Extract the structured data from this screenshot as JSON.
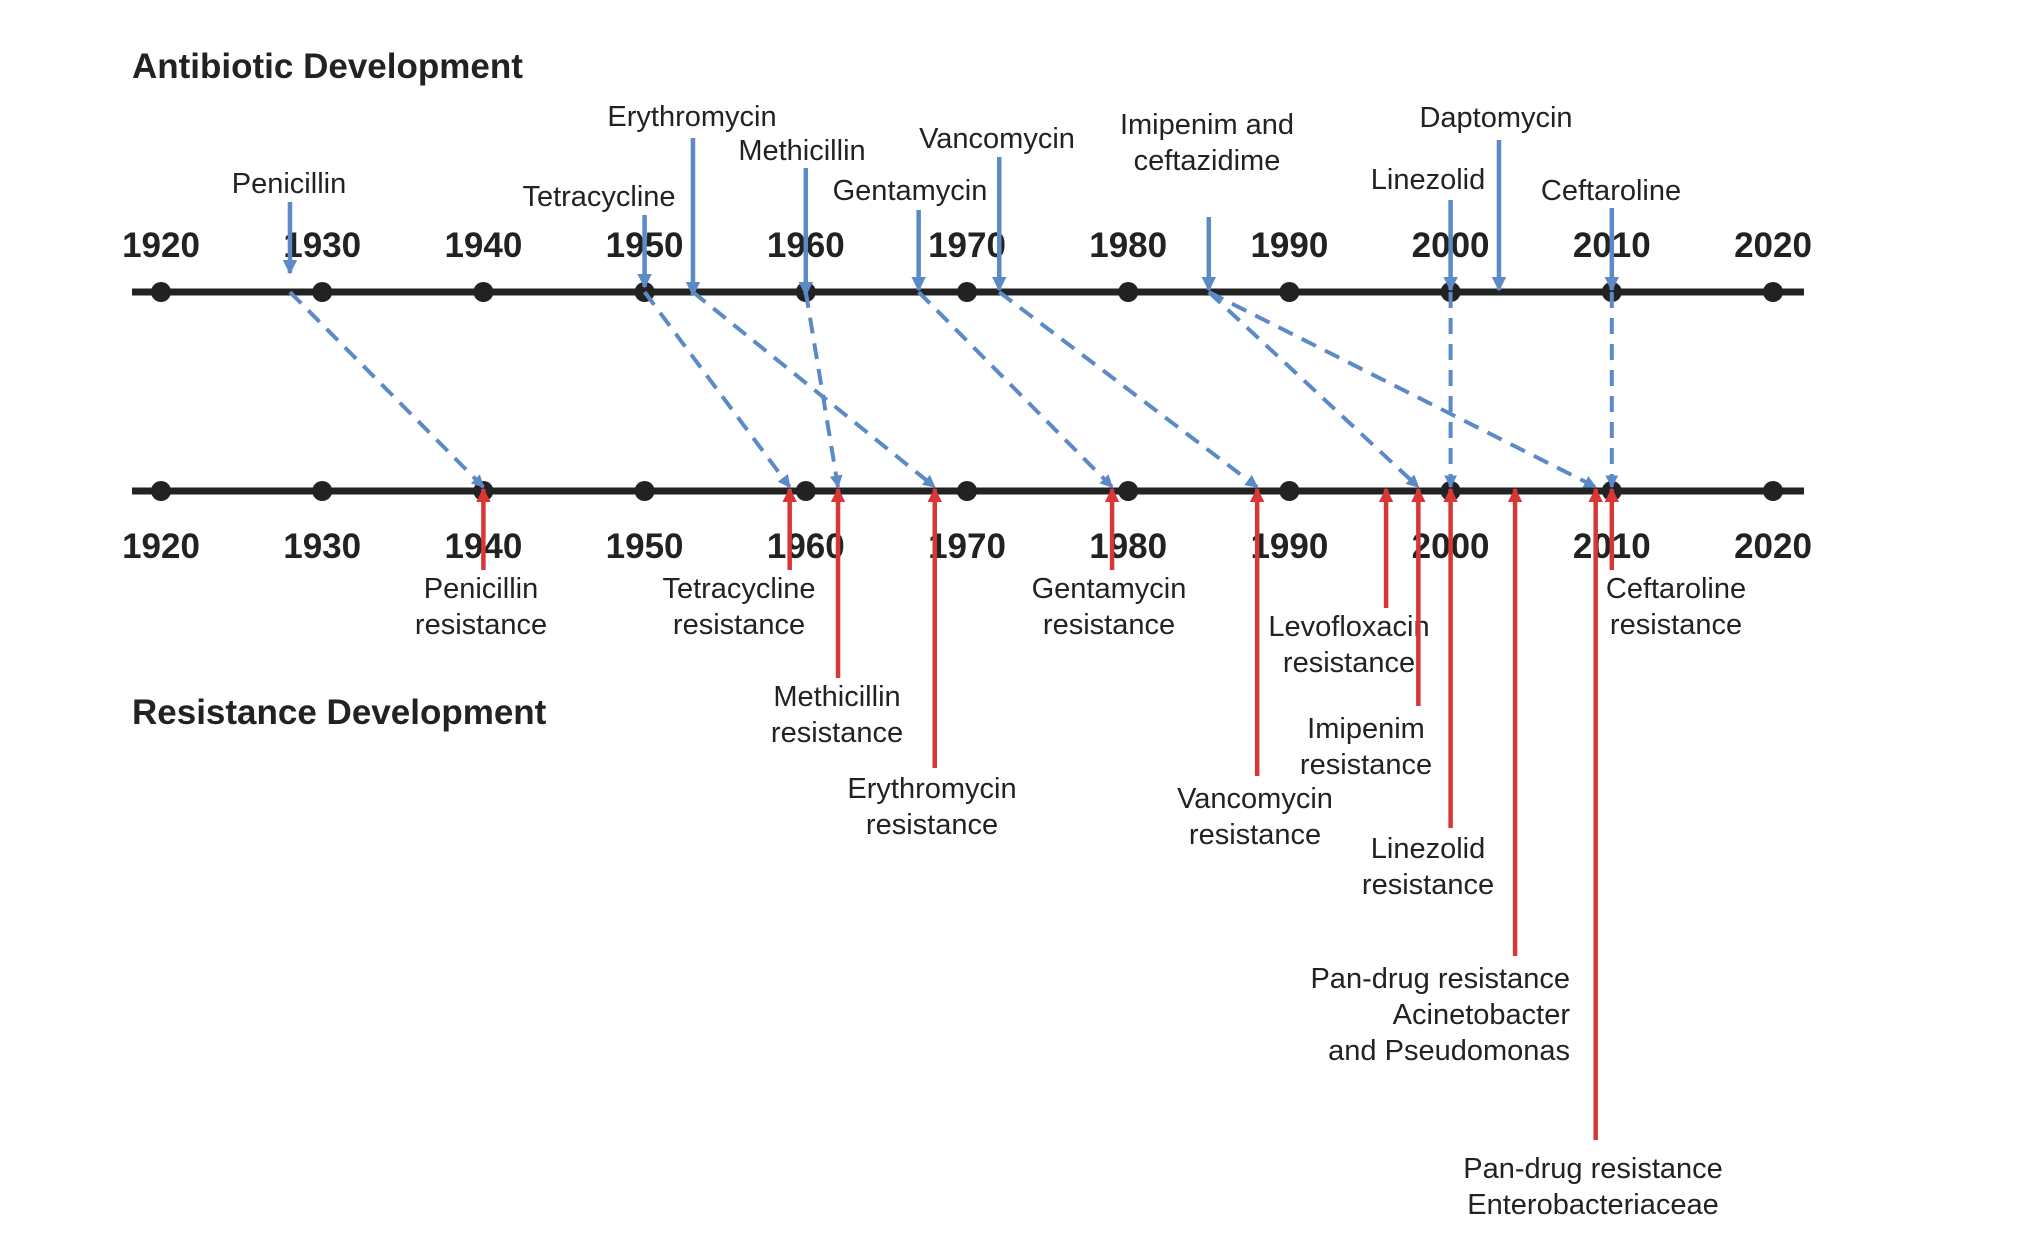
{
  "titles": {
    "antibiotic": "Antibiotic Development",
    "resistance": "Resistance Development"
  },
  "years": [
    "1920",
    "1930",
    "1940",
    "1950",
    "1960",
    "1970",
    "1980",
    "1990",
    "2000",
    "2010",
    "2020"
  ],
  "colors": {
    "axis": "#222222",
    "antibiotic": "#5b8ac6",
    "resistance": "#d93636",
    "text": "#222222"
  },
  "antibiotics": [
    {
      "name": "Penicillin",
      "year": 1928,
      "lines": [
        "Penicillin"
      ],
      "resistance_year": 1940
    },
    {
      "name": "Tetracycline",
      "year": 1950,
      "lines": [
        "Tetracycline"
      ],
      "resistance_year": 1959
    },
    {
      "name": "Erythromycin",
      "year": 1953,
      "lines": [
        "Erythromycin"
      ],
      "resistance_year": 1968
    },
    {
      "name": "Methicillin",
      "year": 1960,
      "lines": [
        "Methicillin"
      ],
      "resistance_year": 1962
    },
    {
      "name": "Gentamycin",
      "year": 1967,
      "lines": [
        "Gentamycin"
      ],
      "resistance_year": 1979
    },
    {
      "name": "Vancomycin",
      "year": 1972,
      "lines": [
        "Vancomycin"
      ],
      "resistance_year": 1988
    },
    {
      "name": "Imipenim and ceftazidime",
      "year": 1985,
      "lines": [
        "Imipenim and",
        "ceftazidime"
      ],
      "resistance_year": [
        1998,
        2009
      ]
    },
    {
      "name": "Linezolid",
      "year": 2000,
      "lines": [
        "Linezolid"
      ],
      "resistance_year": 2000
    },
    {
      "name": "Daptomycin",
      "year": 2003,
      "lines": [
        "Daptomycin"
      ]
    },
    {
      "name": "Ceftaroline",
      "year": 2010,
      "lines": [
        "Ceftaroline"
      ],
      "resistance_year": 2010
    }
  ],
  "resistances": [
    {
      "year": 1940,
      "lines": [
        "Penicillin",
        "resistance"
      ]
    },
    {
      "year": 1959,
      "lines": [
        "Tetracycline",
        "resistance"
      ]
    },
    {
      "year": 1962,
      "lines": [
        "Methicillin",
        "resistance"
      ]
    },
    {
      "year": 1968,
      "lines": [
        "Erythromycin",
        "resistance"
      ]
    },
    {
      "year": 1979,
      "lines": [
        "Gentamycin",
        "resistance"
      ]
    },
    {
      "year": 1988,
      "lines": [
        "Vancomycin",
        "resistance"
      ]
    },
    {
      "year": 1996,
      "lines": [
        "Levofloxacin",
        "resistance"
      ]
    },
    {
      "year": 1998,
      "lines": [
        "Imipenim",
        "resistance"
      ]
    },
    {
      "year": 2000,
      "lines": [
        "Linezolid",
        "resistance"
      ]
    },
    {
      "year": 2004,
      "lines": [
        "Pan-drug resistance",
        "Acinetobacter",
        "and Pseudomonas"
      ]
    },
    {
      "year": 2009,
      "lines": [
        "Pan-drug resistance",
        "Enterobacteriaceae"
      ]
    },
    {
      "year": 2010,
      "lines": [
        "Ceftaroline",
        "resistance"
      ]
    }
  ]
}
